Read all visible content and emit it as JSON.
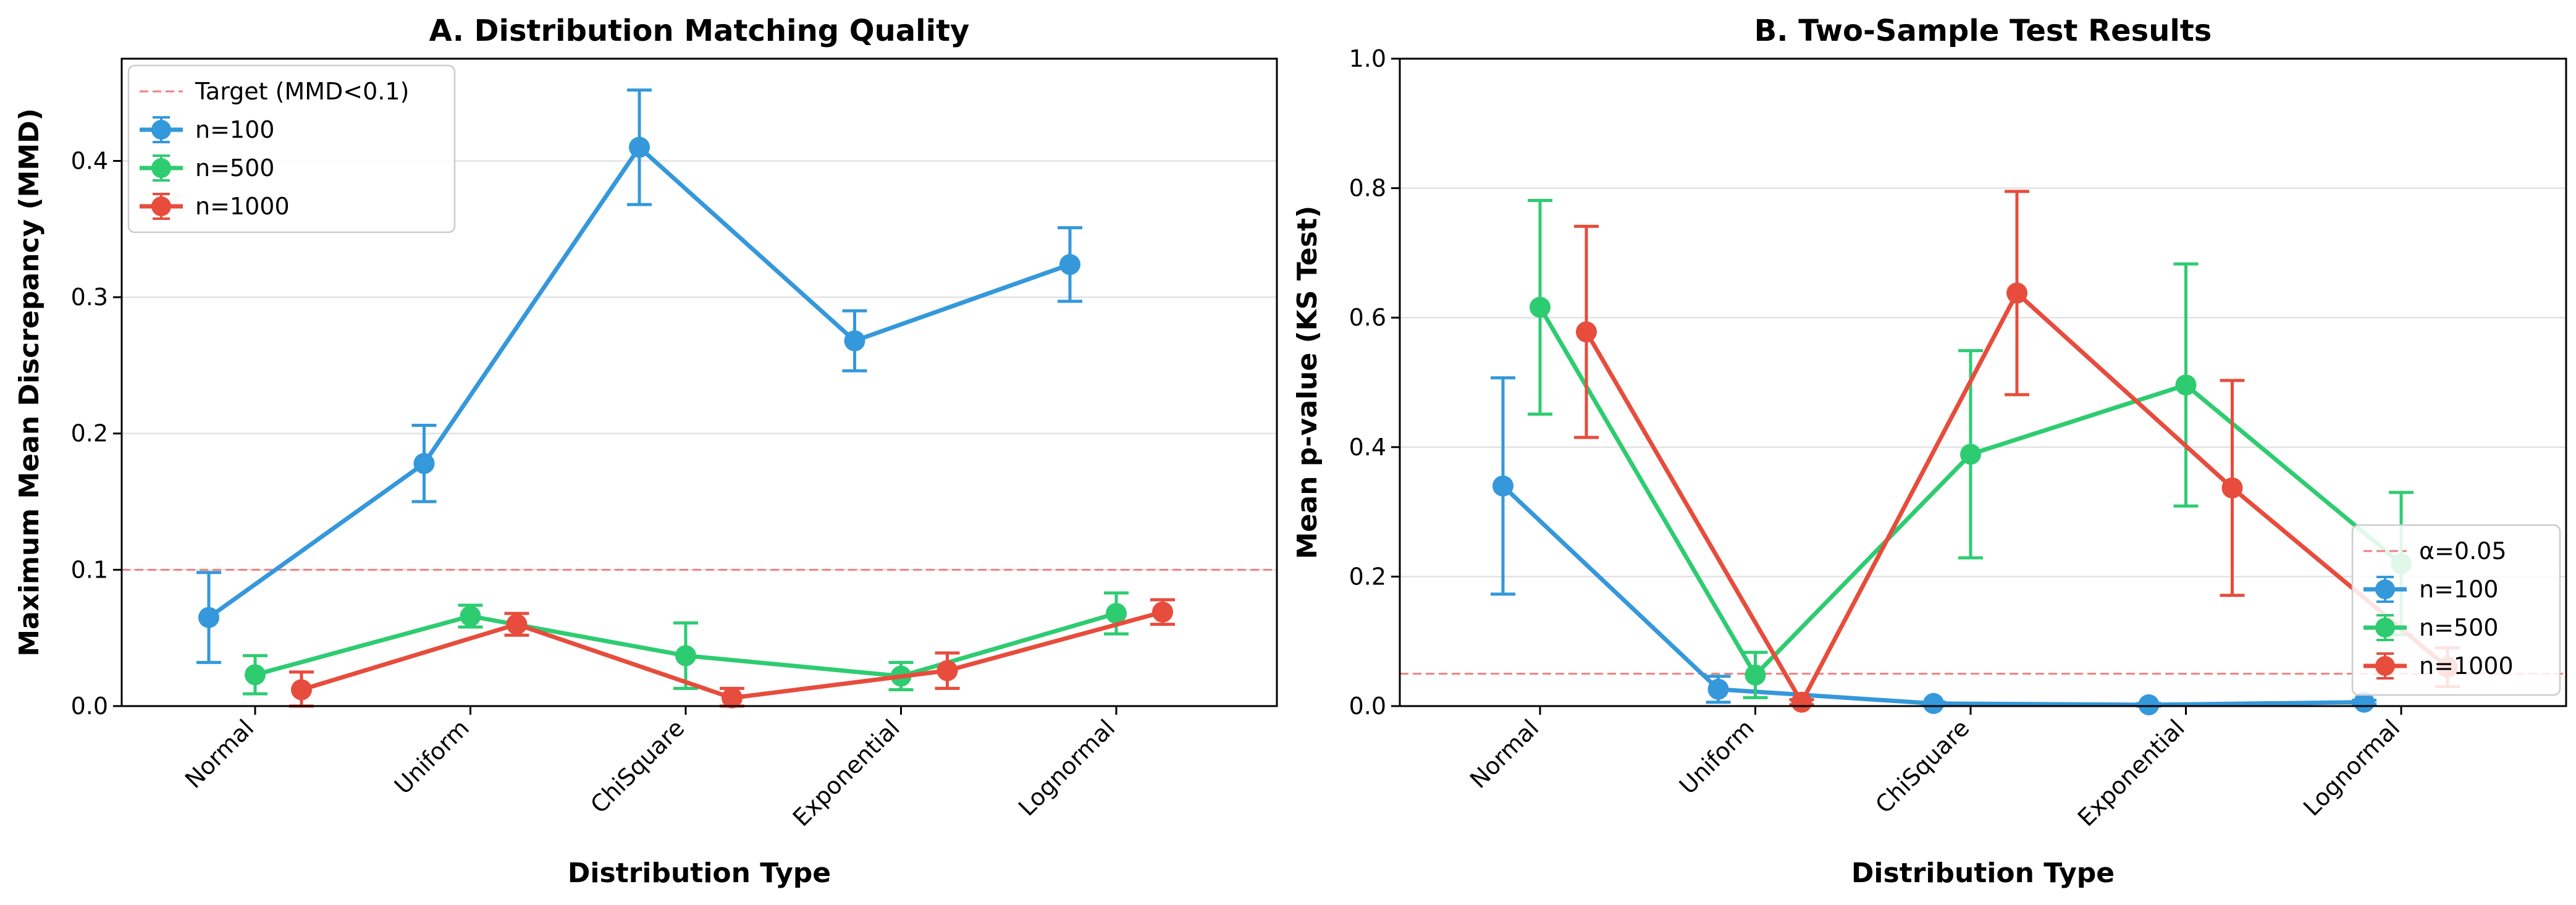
{
  "chart_data": [
    {
      "type": "line",
      "title": "A. Distribution Matching Quality",
      "xlabel": "Distribution Type",
      "ylabel": "Maximum Mean Discrepancy (MMD)",
      "categories": [
        "Normal",
        "Uniform",
        "ChiSquare",
        "Exponential",
        "Lognormal"
      ],
      "ylim": [
        0,
        0.475
      ],
      "yticks": [
        0.0,
        0.1,
        0.2,
        0.3,
        0.4
      ],
      "ytick_labels": [
        "0.0",
        "0.1",
        "0.2",
        "0.3",
        "0.4"
      ],
      "grid": "horizontal",
      "legend_position": "top-left",
      "reference_line": {
        "label": "Target (MMD<0.1)",
        "y": 0.1,
        "color": "#f08080"
      },
      "series": [
        {
          "name": "n=100",
          "color": "#3498db",
          "offset": -0.5,
          "values": [
            0.065,
            0.178,
            0.41,
            0.268,
            0.324
          ],
          "errors": [
            0.033,
            0.028,
            0.042,
            0.022,
            0.027
          ]
        },
        {
          "name": "n=500",
          "color": "#2ecc71",
          "offset": 0.0,
          "values": [
            0.023,
            0.066,
            0.037,
            0.022,
            0.068
          ],
          "errors": [
            0.014,
            0.008,
            0.024,
            0.01,
            0.015
          ]
        },
        {
          "name": "n=1000",
          "color": "#e74c3c",
          "offset": 0.5,
          "values": [
            0.012,
            0.06,
            0.006,
            0.026,
            0.069
          ],
          "errors": [
            0.013,
            0.008,
            0.007,
            0.013,
            0.009
          ]
        }
      ]
    },
    {
      "type": "line",
      "title": "B. Two-Sample Test Results",
      "xlabel": "Distribution Type",
      "ylabel": "Mean p-value (KS Test)",
      "categories": [
        "Normal",
        "Uniform",
        "ChiSquare",
        "Exponential",
        "Lognormal"
      ],
      "ylim": [
        0,
        1.0
      ],
      "yticks": [
        0.0,
        0.2,
        0.4,
        0.6,
        0.8,
        1.0
      ],
      "ytick_labels": [
        "0.0",
        "0.2",
        "0.4",
        "0.6",
        "0.8",
        "1.0"
      ],
      "grid": "horizontal",
      "legend_position": "bottom-right",
      "reference_line": {
        "label": "α=0.05",
        "y": 0.05,
        "color": "#f08080"
      },
      "series": [
        {
          "name": "n=100",
          "color": "#3498db",
          "offset": -0.4,
          "values": [
            0.34,
            0.026,
            0.004,
            0.002,
            0.006
          ],
          "errors": [
            0.167,
            0.02,
            0.002,
            0.002,
            0.003
          ]
        },
        {
          "name": "n=500",
          "color": "#2ecc71",
          "offset": 0.0,
          "values": [
            0.616,
            0.048,
            0.389,
            0.496,
            0.22
          ],
          "errors": [
            0.165,
            0.035,
            0.16,
            0.187,
            0.11
          ]
        },
        {
          "name": "n=1000",
          "color": "#e74c3c",
          "offset": 0.5,
          "values": [
            0.578,
            0.006,
            0.638,
            0.337,
            0.06
          ],
          "errors": [
            0.163,
            0.004,
            0.157,
            0.166,
            0.03
          ]
        }
      ]
    }
  ]
}
